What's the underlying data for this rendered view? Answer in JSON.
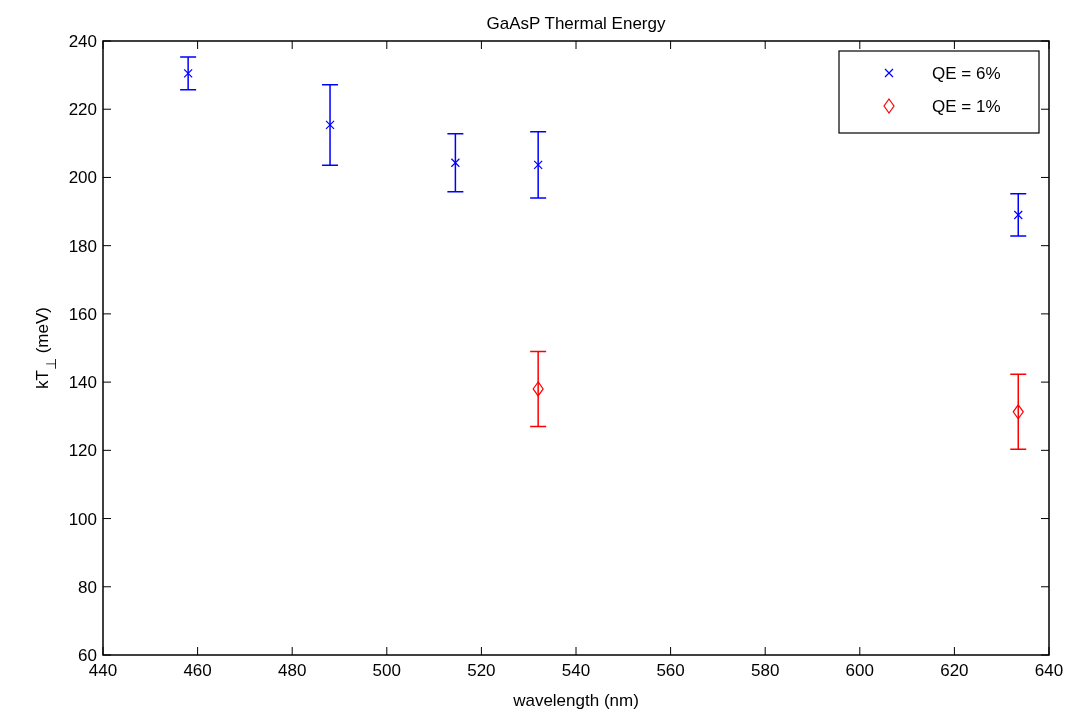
{
  "chart_data": {
    "type": "scatter",
    "title": "GaAsP Thermal Energy",
    "xlabel": "wavelength (nm)",
    "ylabel": "kT$_{⊥}$ (meV)",
    "xlim": [
      440,
      640
    ],
    "xticks": [
      440,
      460,
      480,
      500,
      520,
      540,
      560,
      580,
      600,
      620,
      640
    ],
    "ylim": [
      60,
      240
    ],
    "yticks": [
      60,
      80,
      100,
      120,
      140,
      160,
      180,
      200,
      220,
      240
    ],
    "grid": false,
    "legend": "top right",
    "series": [
      {
        "name": "QE = 6%",
        "color": "#0000ff",
        "marker": "cross",
        "x": [
          458,
          488,
          514.5,
          532,
          633.5
        ],
        "values": [
          230.5,
          215.4,
          204.3,
          203.7,
          189.0
        ],
        "errors": [
          4.8,
          11.8,
          8.5,
          9.7,
          6.2
        ]
      },
      {
        "name": "QE = 1%",
        "color": "#ff0000",
        "marker": "diamond",
        "x": [
          532,
          633.5
        ],
        "values": [
          138.0,
          131.3
        ],
        "errors": [
          11,
          11
        ]
      }
    ]
  }
}
